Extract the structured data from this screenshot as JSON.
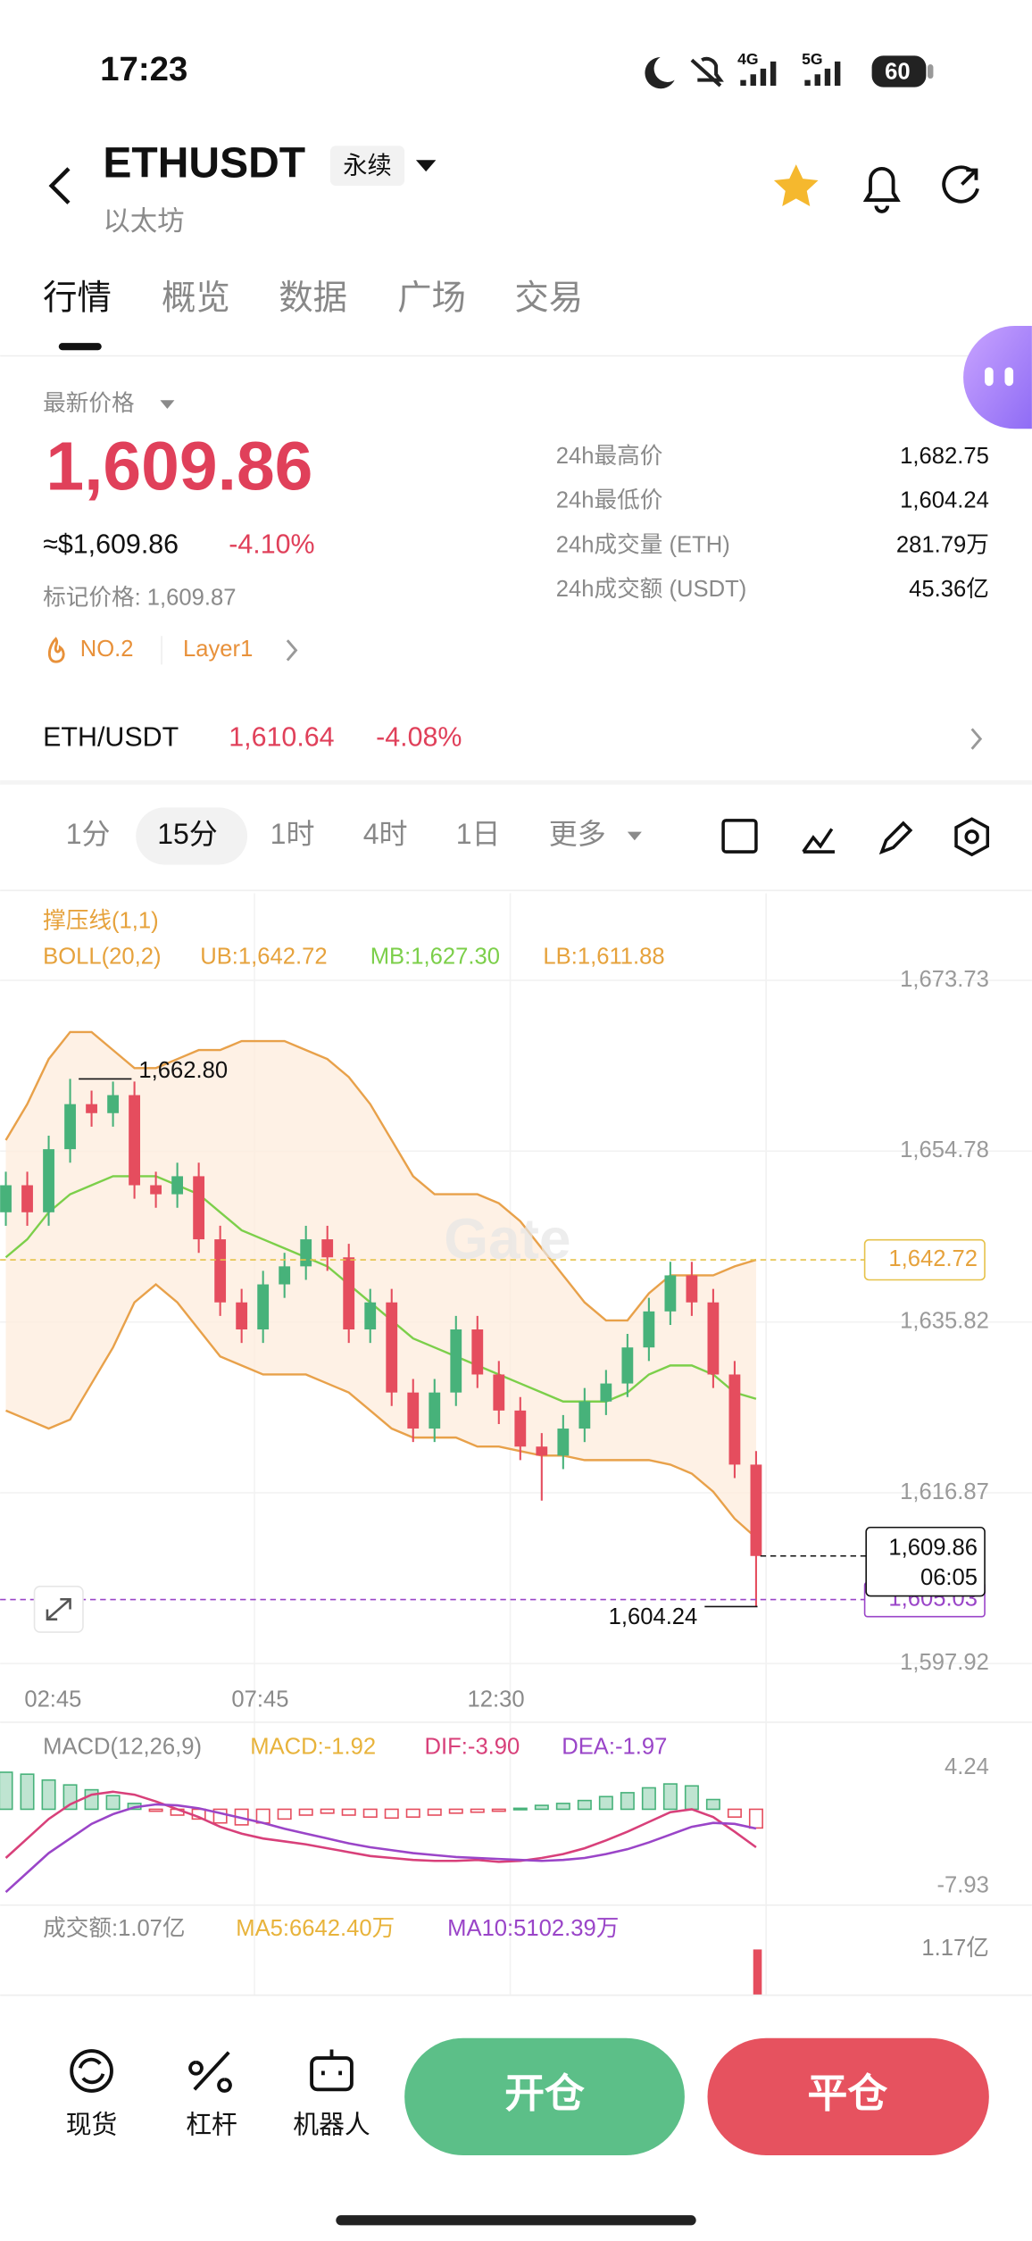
{
  "status": {
    "time": "17:23",
    "net1": "4G",
    "net2": "5G",
    "battery": "60"
  },
  "header": {
    "symbol": "ETHUSDT",
    "tag": "永续",
    "name": "以太坊"
  },
  "tabs": [
    "行情",
    "概览",
    "数据",
    "广场",
    "交易"
  ],
  "price": {
    "label": "最新价格",
    "last": "1,609.86",
    "usd": "≈$1,609.86",
    "change": "-4.10%",
    "mark": "标记价格: 1,609.87",
    "rank": "NO.2",
    "sector": "Layer1"
  },
  "stats": [
    [
      "24h最高价",
      "1,682.75"
    ],
    [
      "24h最低价",
      "1,604.24"
    ],
    [
      "24h成交量 (ETH)",
      "281.79万"
    ],
    [
      "24h成交额 (USDT)",
      "45.36亿"
    ]
  ],
  "spot": {
    "pair": "ETH/USDT",
    "price": "1,610.64",
    "change": "-4.08%"
  },
  "intervals": [
    "1分",
    "15分",
    "1时",
    "4时",
    "1日",
    "更多"
  ],
  "indicators": {
    "sr": "撑压线(1,1)",
    "boll": [
      "BOLL(20,2)",
      "UB:1,642.72",
      "MB:1,627.30",
      "LB:1,611.88"
    ],
    "macd": [
      "MACD(12,26,9)",
      "MACD:-1.92",
      "DIF:-3.90",
      "DEA:-1.97"
    ],
    "vol": [
      "成交额:1.07亿",
      "MA5:6642.40万",
      "MA10:5102.39万"
    ],
    "vol_tick": "1.17亿"
  },
  "watermark": "Gate",
  "chart_data": [
    {
      "type": "candlestick",
      "up_color": "#47b27a",
      "down_color": "#e54d5e",
      "categories": [
        null,
        "02:45",
        null,
        null,
        null,
        null,
        null,
        null,
        null,
        null,
        null,
        null,
        "07:45",
        null,
        null,
        null,
        null,
        null,
        null,
        null,
        null,
        null,
        null,
        "12:30",
        null,
        null,
        null,
        null,
        null,
        null,
        null,
        null,
        null,
        null,
        null,
        null
      ],
      "open": [
        1648,
        1651,
        1648,
        1655,
        1660,
        1659,
        1661,
        1651,
        1650,
        1652,
        1645,
        1638,
        1635,
        1640,
        1642,
        1645,
        1643,
        1635,
        1638,
        1628,
        1624,
        1628,
        1635,
        1630,
        1626,
        1622,
        1621,
        1624,
        1627,
        1629,
        1633,
        1637,
        1641,
        1638,
        1630,
        1620
      ],
      "high": [
        1652.5,
        1652.5,
        1656.5,
        1662.8,
        1661.5,
        1662.5,
        1662.5,
        1652.5,
        1653.5,
        1653.5,
        1646.5,
        1639.5,
        1641.5,
        1643.5,
        1646.5,
        1646.5,
        1644.5,
        1639.5,
        1639.5,
        1629.5,
        1629.5,
        1636.5,
        1636.5,
        1631.5,
        1627.5,
        1623.5,
        1625.5,
        1628.5,
        1630.5,
        1634.5,
        1638.5,
        1642.5,
        1642.5,
        1639.5,
        1631.5,
        1621.5
      ],
      "low": [
        1646.5,
        1646.5,
        1646.5,
        1653.5,
        1657.5,
        1657.5,
        1649.5,
        1648.5,
        1648.5,
        1643.5,
        1636.5,
        1633.5,
        1633.5,
        1638.5,
        1640.5,
        1641.5,
        1633.5,
        1633.5,
        1626.5,
        1622.5,
        1622.5,
        1626.5,
        1628.5,
        1624.5,
        1620.5,
        1616,
        1619.5,
        1622.5,
        1625.5,
        1627.5,
        1631.5,
        1635.5,
        1636.5,
        1628.5,
        1618.5,
        1604.24
      ],
      "close": [
        1651,
        1648,
        1655,
        1660,
        1659,
        1661,
        1651,
        1650,
        1652,
        1645,
        1638,
        1635,
        1640,
        1642,
        1645,
        1643,
        1635,
        1638,
        1628,
        1624,
        1628,
        1635,
        1630,
        1626,
        1622,
        1621,
        1624,
        1627,
        1629,
        1633,
        1637,
        1641,
        1638,
        1630,
        1620,
        1609.86
      ],
      "boll": {
        "band_color": "#fdecdc",
        "ub_color": "#e8a14a",
        "mb_color": "#7ccf4a",
        "lb_color": "#e8a14a",
        "ub": [
          1656,
          1660,
          1665,
          1668,
          1668,
          1666,
          1664,
          1664,
          1665,
          1666,
          1666,
          1667,
          1667,
          1667,
          1666,
          1665,
          1663,
          1660,
          1656,
          1652,
          1650,
          1650,
          1650,
          1649,
          1647,
          1644,
          1641,
          1638,
          1636,
          1636,
          1639,
          1641,
          1641,
          1641,
          1642,
          1642.72
        ],
        "mb": [
          1643,
          1645,
          1648,
          1650,
          1651,
          1652,
          1652,
          1652,
          1651,
          1650,
          1648,
          1646,
          1645,
          1644,
          1643,
          1642,
          1640,
          1638,
          1636,
          1634,
          1633,
          1632,
          1631,
          1630,
          1629,
          1628,
          1627,
          1627,
          1627,
          1628,
          1630,
          1631,
          1631,
          1630,
          1628,
          1627.3
        ],
        "lb": [
          1626,
          1625,
          1624,
          1625,
          1629,
          1633,
          1638,
          1640,
          1638,
          1635,
          1632,
          1631,
          1630,
          1630,
          1630,
          1629,
          1628,
          1626,
          1624,
          1623,
          1623,
          1623,
          1622,
          1622,
          1621.5,
          1621,
          1621,
          1620.5,
          1620.5,
          1620.5,
          1620.5,
          1620,
          1619,
          1617,
          1614,
          1611.88
        ]
      },
      "ylim": [
        1596.65,
        1683.4
      ],
      "yticks": [
        {
          "value": 1597.92,
          "label": "1,597.92"
        },
        {
          "value": 1616.87,
          "label": "1,616.87"
        },
        {
          "value": 1635.82,
          "label": "1,635.82"
        },
        {
          "value": 1654.78,
          "label": "1,654.78"
        },
        {
          "value": 1673.73,
          "label": "1,673.73"
        }
      ],
      "high_mark": {
        "value": 1662.8,
        "label": "1,662.80"
      },
      "low_mark": {
        "value": 1604.24,
        "label": "1,604.24"
      },
      "ub_mark": {
        "value": 1642.72,
        "label": "1,642.72"
      },
      "last_mark": {
        "value": 1609.86,
        "label": "1,609.86",
        "countdown": "06:05"
      },
      "line_mark": {
        "value": 1605.03,
        "label": "1,605.03"
      }
    },
    {
      "type": "macd",
      "up_color": "#47b27a",
      "down_color": "#e54d5e",
      "dif_color": "#d8407a",
      "dea_color": "#9a45c8",
      "hist": [
        3.8,
        3.6,
        3.0,
        2.5,
        2.0,
        1.4,
        0.6,
        -0.2,
        -0.6,
        -1.0,
        -1.4,
        -1.6,
        -1.4,
        -1.0,
        -0.6,
        -0.4,
        -0.6,
        -0.8,
        -0.9,
        -0.8,
        -0.6,
        -0.4,
        -0.3,
        -0.2,
        0.1,
        0.4,
        0.6,
        0.9,
        1.3,
        1.7,
        2.2,
        2.6,
        2.4,
        1.0,
        -0.8,
        -1.92
      ],
      "dif": [
        -5,
        -3,
        -1,
        0.5,
        1.5,
        1.8,
        1.5,
        0.8,
        0,
        -0.8,
        -1.8,
        -2.5,
        -3,
        -3.3,
        -3.6,
        -4,
        -4.4,
        -4.8,
        -5,
        -5.2,
        -5.3,
        -5.3,
        -5.2,
        -5.4,
        -5.3,
        -5,
        -4.6,
        -4,
        -3.2,
        -2.3,
        -1.3,
        -0.3,
        0,
        -0.8,
        -2.3,
        -3.9
      ],
      "dea": [
        -8.5,
        -6.5,
        -4.5,
        -3,
        -1.5,
        -0.5,
        0.2,
        0.5,
        0.4,
        0.1,
        -0.4,
        -0.9,
        -1.4,
        -2,
        -2.5,
        -3,
        -3.5,
        -3.9,
        -4.2,
        -4.5,
        -4.7,
        -4.9,
        -5,
        -5.1,
        -5.2,
        -5.3,
        -5.2,
        -5,
        -4.6,
        -4.1,
        -3.4,
        -2.6,
        -1.8,
        -1.4,
        -1.5,
        -1.97
      ],
      "ylim": [
        -9.84,
        8.79
      ],
      "yticks": [
        4.24,
        -7.93
      ]
    }
  ],
  "bottom": {
    "tools": [
      "现货",
      "杠杆",
      "机器人"
    ],
    "open": "开仓",
    "close": "平仓"
  }
}
